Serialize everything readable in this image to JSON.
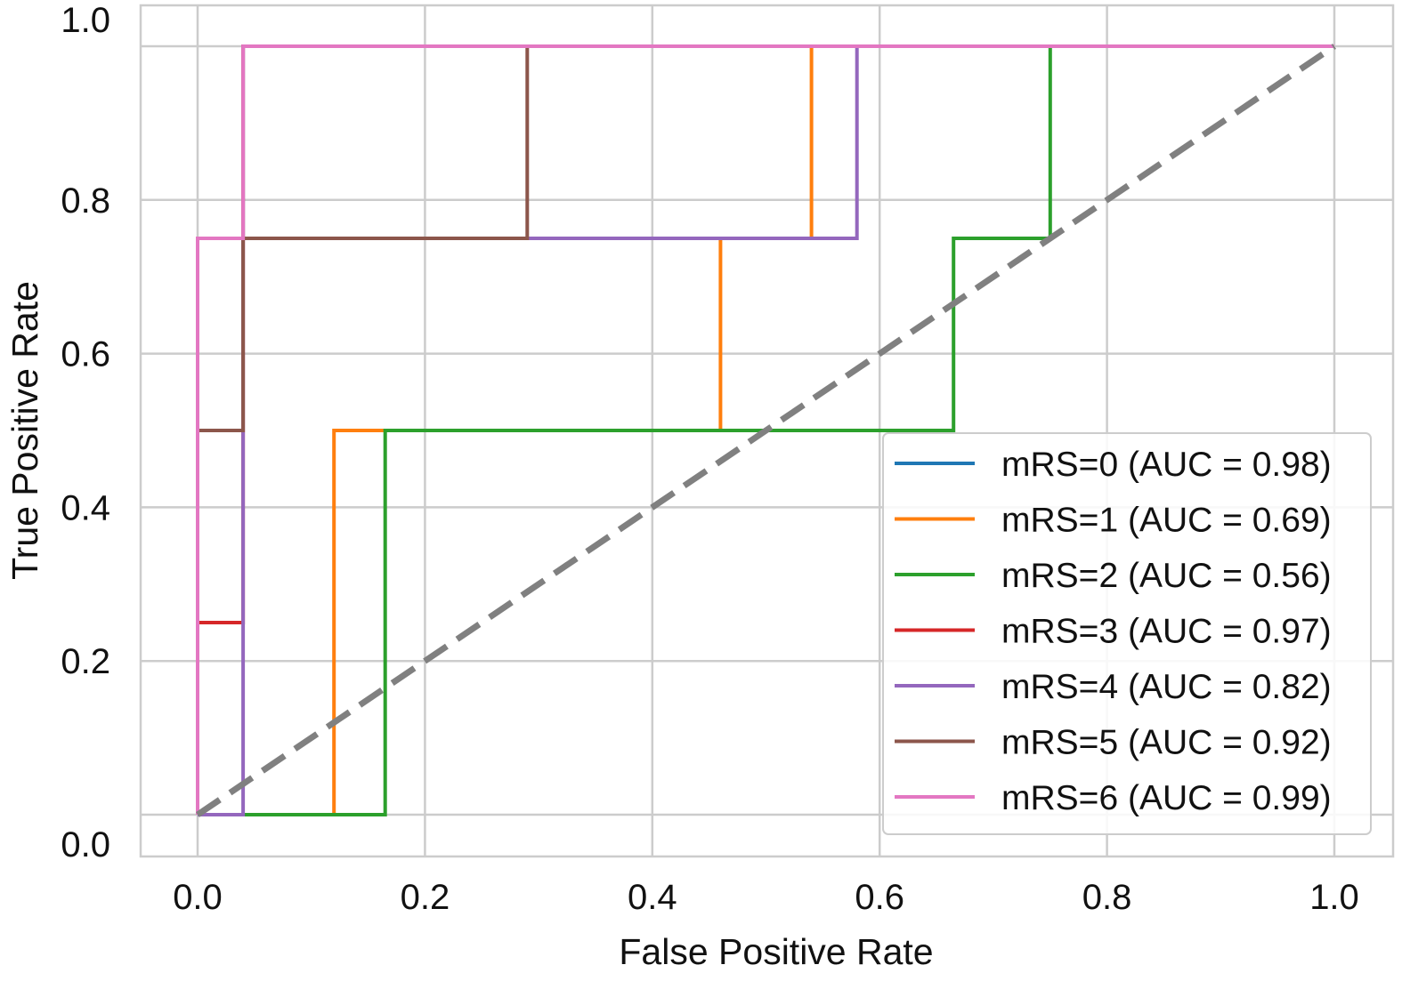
{
  "chart_data": {
    "type": "line",
    "title": "",
    "xlabel": "False Positive Rate",
    "ylabel": "True Positive Rate",
    "xlim": [
      -0.05,
      1.05
    ],
    "ylim": [
      -0.05,
      1.05
    ],
    "xticks": [
      "0.0",
      "0.2",
      "0.4",
      "0.6",
      "0.8",
      "1.0"
    ],
    "yticks": [
      "0.0",
      "0.2",
      "0.4",
      "0.6",
      "0.8",
      "1.0"
    ],
    "grid": true,
    "legend_position": "lower-right",
    "series": [
      {
        "name": "mRS=0 (AUC = 0.98)",
        "color": "#1f77b4",
        "x": [
          0,
          0,
          0.04,
          0.04,
          1
        ],
        "y": [
          0,
          0.75,
          0.75,
          1,
          1
        ]
      },
      {
        "name": "mRS=1 (AUC = 0.69)",
        "color": "#ff7f0e",
        "x": [
          0,
          0.12,
          0.12,
          0.46,
          0.46,
          0.54,
          0.54,
          1
        ],
        "y": [
          0,
          0,
          0.5,
          0.5,
          0.75,
          0.75,
          1,
          1
        ]
      },
      {
        "name": "mRS=2 (AUC = 0.56)",
        "color": "#2ca02c",
        "x": [
          0,
          0.165,
          0.165,
          0.665,
          0.665,
          0.75,
          0.75,
          1
        ],
        "y": [
          0,
          0,
          0.5,
          0.5,
          0.75,
          0.75,
          1,
          1
        ]
      },
      {
        "name": "mRS=3 (AUC = 0.97)",
        "color": "#d62728",
        "x": [
          0,
          0,
          0.04,
          0.04,
          1
        ],
        "y": [
          0,
          0.25,
          0.25,
          1,
          1
        ]
      },
      {
        "name": "mRS=4 (AUC = 0.82)",
        "color": "#9467bd",
        "x": [
          0,
          0.04,
          0.04,
          0.58,
          0.58,
          1
        ],
        "y": [
          0,
          0,
          0.75,
          0.75,
          1,
          1
        ]
      },
      {
        "name": "mRS=5 (AUC = 0.92)",
        "color": "#8c564b",
        "x": [
          0,
          0,
          0.04,
          0.04,
          0.29,
          0.29,
          1
        ],
        "y": [
          0,
          0.5,
          0.5,
          0.75,
          0.75,
          1,
          1
        ]
      },
      {
        "name": "mRS=6 (AUC = 0.99)",
        "color": "#e377c2",
        "x": [
          0,
          0,
          0.04,
          0.04,
          1
        ],
        "y": [
          0,
          0.75,
          0.75,
          1,
          1
        ]
      }
    ],
    "reference_line": {
      "x": [
        0,
        1
      ],
      "y": [
        0,
        1
      ],
      "color": "#808080",
      "style": "dashed"
    }
  }
}
